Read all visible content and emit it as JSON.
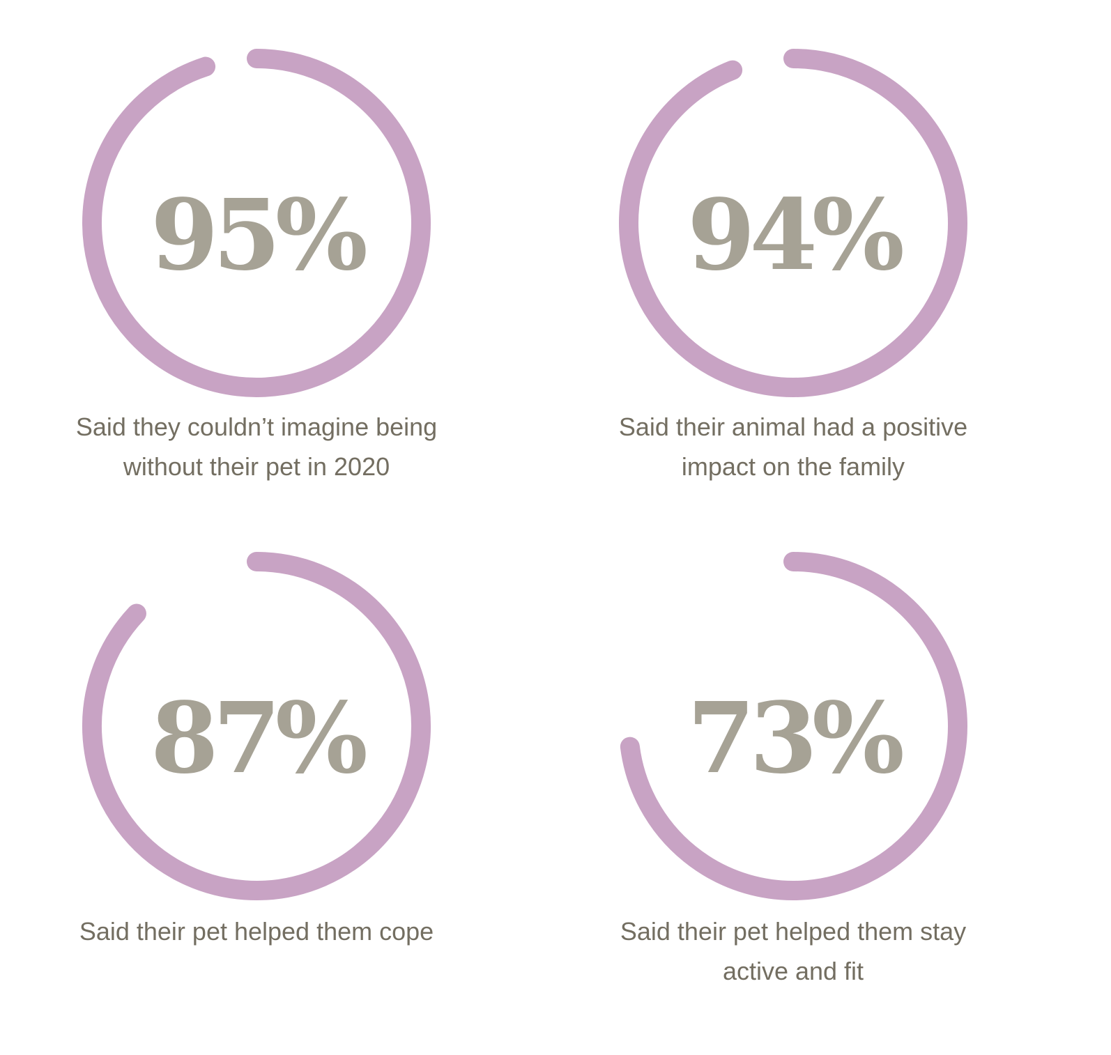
{
  "colors": {
    "ring": "#c8a3c4",
    "value_text": "#a6a295",
    "caption_text": "#736e61"
  },
  "stats": [
    {
      "value_label": "95%",
      "caption_line1": "Said they couldn’t imagine being",
      "caption_line2": "without their pet in 2020"
    },
    {
      "value_label": "94%",
      "caption_line1": "Said their animal had a positive",
      "caption_line2": "impact on the family"
    },
    {
      "value_label": "87%",
      "caption_line1": "Said their pet helped them cope",
      "caption_line2": ""
    },
    {
      "value_label": "73%",
      "caption_line1": "Said their pet helped them stay",
      "caption_line2": "active and fit"
    }
  ],
  "chart_data": {
    "type": "pie",
    "categories": [
      "Said they couldn’t imagine being without their pet in 2020",
      "Said their animal had a positive impact on the family",
      "Said their pet helped them cope",
      "Said their pet helped them stay active and fit"
    ],
    "values": [
      95,
      94,
      87,
      73
    ],
    "unit": "%",
    "title": "",
    "grid": false,
    "legend": "none"
  }
}
